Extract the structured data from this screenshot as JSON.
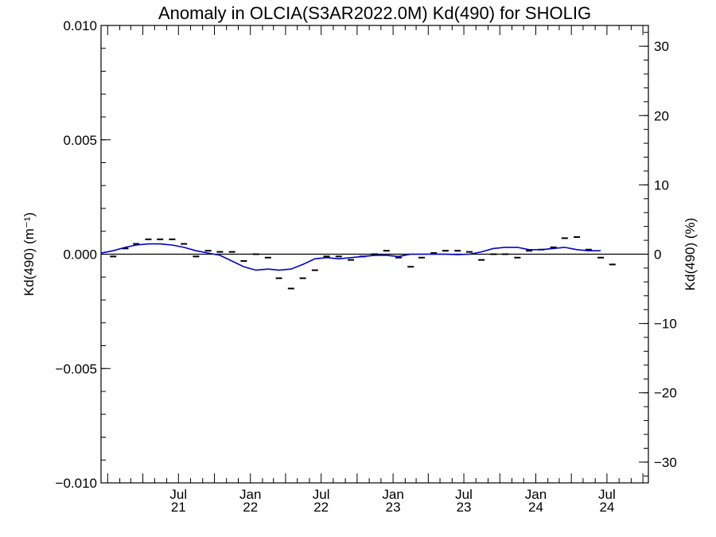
{
  "chart_data": {
    "type": "line",
    "title": "Anomaly in OLCIA(S3AR2022.0M) Kd(490) for SHOLIG",
    "ylabel_left": "Kd(490) (m⁻¹)",
    "ylabel_right": "Kd(490) (%)",
    "ylim_left": [
      -0.01,
      0.01
    ],
    "ylim_right": [
      -33,
      33
    ],
    "xlim": [
      "2020-12-15",
      "2024-10-15"
    ],
    "yticks_left": [
      "0.010",
      "0.005",
      "0.000",
      "−0.005",
      "−0.010"
    ],
    "yticks_right": [
      "30",
      "20",
      "10",
      "0",
      "−10",
      "−20",
      "−30"
    ],
    "xticks": [
      {
        "date": "2021-07-01",
        "month": "Jul",
        "year": "21"
      },
      {
        "date": "2022-01-01",
        "month": "Jan",
        "year": "22"
      },
      {
        "date": "2022-07-01",
        "month": "Jul",
        "year": "22"
      },
      {
        "date": "2023-01-01",
        "month": "Jan",
        "year": "23"
      },
      {
        "date": "2023-07-01",
        "month": "Jul",
        "year": "23"
      },
      {
        "date": "2024-01-01",
        "month": "Jan",
        "year": "24"
      },
      {
        "date": "2024-07-01",
        "month": "Jul",
        "year": "24"
      }
    ],
    "series": [
      {
        "kind": "monthly",
        "color": "#000000",
        "points": [
          {
            "x": "2021-01-15",
            "y": -0.0001
          },
          {
            "x": "2021-02-15",
            "y": 0.00025
          },
          {
            "x": "2021-03-15",
            "y": 0.00045
          },
          {
            "x": "2021-04-15",
            "y": 0.00065
          },
          {
            "x": "2021-05-15",
            "y": 0.00065
          },
          {
            "x": "2021-06-15",
            "y": 0.00065
          },
          {
            "x": "2021-07-15",
            "y": 0.00045
          },
          {
            "x": "2021-08-15",
            "y": -0.0001
          },
          {
            "x": "2021-09-15",
            "y": 0.00015
          },
          {
            "x": "2021-10-15",
            "y": 0.0001
          },
          {
            "x": "2021-11-15",
            "y": 0.0001
          },
          {
            "x": "2021-12-15",
            "y": -0.0003
          },
          {
            "x": "2022-01-15",
            "y": 0.0
          },
          {
            "x": "2022-02-15",
            "y": -0.00015
          },
          {
            "x": "2022-03-15",
            "y": -0.00105
          },
          {
            "x": "2022-04-15",
            "y": -0.0015
          },
          {
            "x": "2022-05-15",
            "y": -0.00105
          },
          {
            "x": "2022-06-15",
            "y": -0.0007
          },
          {
            "x": "2022-07-15",
            "y": -0.0001
          },
          {
            "x": "2022-08-15",
            "y": -0.0001
          },
          {
            "x": "2022-09-15",
            "y": -0.00025
          },
          {
            "x": "2022-10-15",
            "y": -0.0001
          },
          {
            "x": "2022-11-15",
            "y": 0.0
          },
          {
            "x": "2022-12-15",
            "y": 0.00015
          },
          {
            "x": "2023-01-15",
            "y": -0.00015
          },
          {
            "x": "2023-02-15",
            "y": -0.00055
          },
          {
            "x": "2023-03-15",
            "y": -0.00015
          },
          {
            "x": "2023-04-15",
            "y": 5e-05
          },
          {
            "x": "2023-05-15",
            "y": 0.00015
          },
          {
            "x": "2023-06-15",
            "y": 0.00015
          },
          {
            "x": "2023-07-15",
            "y": 0.0001
          },
          {
            "x": "2023-08-15",
            "y": -0.00025
          },
          {
            "x": "2023-09-15",
            "y": 0.0
          },
          {
            "x": "2023-10-15",
            "y": 0.0
          },
          {
            "x": "2023-11-15",
            "y": -0.00015
          },
          {
            "x": "2023-12-15",
            "y": 0.00015
          },
          {
            "x": "2024-01-15",
            "y": 0.0002
          },
          {
            "x": "2024-02-15",
            "y": 0.0003
          },
          {
            "x": "2024-03-15",
            "y": 0.0007
          },
          {
            "x": "2024-04-15",
            "y": 0.00075
          },
          {
            "x": "2024-05-15",
            "y": 0.0002
          },
          {
            "x": "2024-06-15",
            "y": -0.00015
          },
          {
            "x": "2024-07-15",
            "y": -0.00045
          }
        ]
      },
      {
        "kind": "smoothed",
        "color": "#0000cc",
        "points": [
          {
            "x": "2020-12-15",
            "y": 5e-05
          },
          {
            "x": "2021-01-15",
            "y": 0.00015
          },
          {
            "x": "2021-02-15",
            "y": 0.0003
          },
          {
            "x": "2021-03-15",
            "y": 0.0004
          },
          {
            "x": "2021-04-15",
            "y": 0.00045
          },
          {
            "x": "2021-05-15",
            "y": 0.00045
          },
          {
            "x": "2021-06-15",
            "y": 0.0004
          },
          {
            "x": "2021-07-15",
            "y": 0.0003
          },
          {
            "x": "2021-08-15",
            "y": 0.00015
          },
          {
            "x": "2021-09-15",
            "y": 5e-05
          },
          {
            "x": "2021-10-15",
            "y": -5e-05
          },
          {
            "x": "2021-11-15",
            "y": -0.0003
          },
          {
            "x": "2021-12-15",
            "y": -0.00055
          },
          {
            "x": "2022-01-15",
            "y": -0.0007
          },
          {
            "x": "2022-02-15",
            "y": -0.00065
          },
          {
            "x": "2022-03-15",
            "y": -0.0007
          },
          {
            "x": "2022-04-15",
            "y": -0.00065
          },
          {
            "x": "2022-05-15",
            "y": -0.00045
          },
          {
            "x": "2022-06-15",
            "y": -0.0002
          },
          {
            "x": "2022-07-15",
            "y": -0.00015
          },
          {
            "x": "2022-08-15",
            "y": -0.0002
          },
          {
            "x": "2022-09-15",
            "y": -0.00015
          },
          {
            "x": "2022-10-15",
            "y": -0.0001
          },
          {
            "x": "2022-11-15",
            "y": -5e-05
          },
          {
            "x": "2022-12-15",
            "y": -5e-05
          },
          {
            "x": "2023-01-15",
            "y": -0.0001
          },
          {
            "x": "2023-02-15",
            "y": 0.0
          },
          {
            "x": "2023-03-15",
            "y": 0.0
          },
          {
            "x": "2023-04-15",
            "y": 0.0
          },
          {
            "x": "2023-05-15",
            "y": 0.0
          },
          {
            "x": "2023-06-15",
            "y": -2e-05
          },
          {
            "x": "2023-07-15",
            "y": 0.0
          },
          {
            "x": "2023-08-15",
            "y": 0.0001
          },
          {
            "x": "2023-09-15",
            "y": 0.00025
          },
          {
            "x": "2023-10-15",
            "y": 0.0003
          },
          {
            "x": "2023-11-15",
            "y": 0.0003
          },
          {
            "x": "2023-12-15",
            "y": 0.0002
          },
          {
            "x": "2024-01-15",
            "y": 0.0002
          },
          {
            "x": "2024-02-15",
            "y": 0.00025
          },
          {
            "x": "2024-03-15",
            "y": 0.0003
          },
          {
            "x": "2024-04-15",
            "y": 0.0002
          },
          {
            "x": "2024-05-15",
            "y": 0.00015
          },
          {
            "x": "2024-06-15",
            "y": 0.00015
          }
        ]
      }
    ],
    "zero_line": true,
    "grid": false
  }
}
